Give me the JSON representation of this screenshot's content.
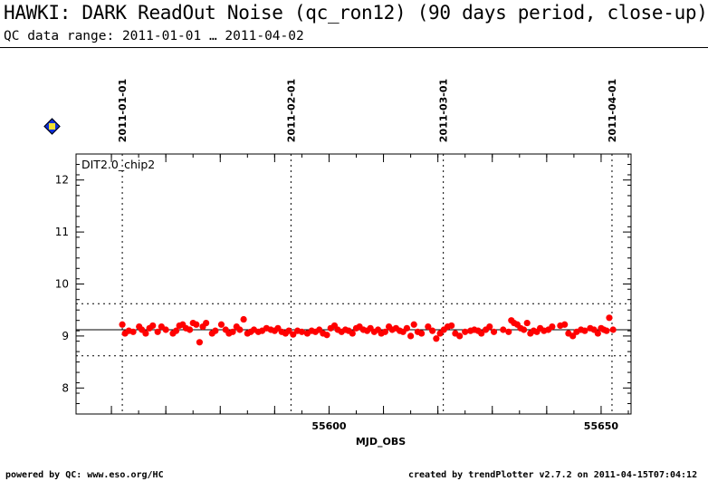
{
  "header": {
    "title": "HAWKI: DARK ReadOut Noise (qc_ron12) (90 days period, close-up)",
    "subtitle": "QC data range: 2011-01-01 … 2011-04-02"
  },
  "footer": {
    "left": "powered by QC: www.eso.org/HC",
    "right": "created by trendPlotter v2.7.2 on 2011-04-15T07:04:12"
  },
  "marker_icon": "diamond-6-icon",
  "colors": {
    "points": "#ff0000",
    "lines": "#000000"
  },
  "chart_data": {
    "type": "scatter",
    "panel_label": "DIT2.0_chip2",
    "xlabel": "MJD_OBS",
    "ylabel": "",
    "xlim": [
      55553.5,
      55655.5
    ],
    "ylim": [
      7.5,
      12.5
    ],
    "x_ticks": [
      55600,
      55650
    ],
    "x_tick_labels": [
      "55600",
      "55650"
    ],
    "y_ticks": [
      8,
      9,
      10,
      11,
      12
    ],
    "y_tick_labels": [
      "8",
      "9",
      "10",
      "11",
      "12"
    ],
    "date_markers": [
      {
        "label": "2011-01-01",
        "mjd": 55562
      },
      {
        "label": "2011-02-01",
        "mjd": 55593
      },
      {
        "label": "2011-03-01",
        "mjd": 55621
      },
      {
        "label": "2011-04-01",
        "mjd": 55652
      }
    ],
    "reference_lines": {
      "mean": 9.12,
      "upper": 9.62,
      "lower": 8.62
    },
    "grid": false,
    "series": [
      {
        "x": [
          55562.0,
          55562.5,
          55563.2,
          55564.0,
          55565.1,
          55565.6,
          55566.3,
          55567.0,
          55567.6,
          55568.5,
          55569.2,
          55570.0,
          55571.3,
          55571.9,
          55572.5,
          55573.1,
          55573.7,
          55574.4,
          55575.0,
          55575.6,
          55576.2,
          55576.8,
          55577.4,
          55578.5,
          55579.1,
          55580.2,
          55581.0,
          55581.6,
          55582.3,
          55583.0,
          55583.6,
          55584.3,
          55585.0,
          55585.6,
          55586.2,
          55587.0,
          55587.7,
          55588.5,
          55589.3,
          55590.0,
          55590.6,
          55591.3,
          55592.0,
          55592.6,
          55593.4,
          55594.2,
          55595.0,
          55596.0,
          55596.8,
          55597.5,
          55598.2,
          55598.9,
          55599.6,
          55600.3,
          55601.0,
          55601.6,
          55602.3,
          55603.0,
          55603.6,
          55604.3,
          55605.0,
          55605.6,
          55606.3,
          55607.0,
          55607.6,
          55608.3,
          55609.0,
          55609.6,
          55610.3,
          55611.0,
          55611.6,
          55612.3,
          55613.0,
          55613.6,
          55614.3,
          55615.0,
          55615.6,
          55616.3,
          55617.0,
          55618.2,
          55619.0,
          55619.7,
          55620.4,
          55621.1,
          55621.8,
          55622.5,
          55623.2,
          55624.0,
          55625.0,
          55626.0,
          55626.7,
          55627.4,
          55628.0,
          55628.8,
          55629.5,
          55630.3,
          55632.0,
          55633.0,
          55633.5,
          55634.0,
          55634.6,
          55635.2,
          55635.8,
          55636.4,
          55637.0,
          55637.6,
          55638.2,
          55638.8,
          55639.5,
          55640.3,
          55641.0,
          55642.5,
          55643.3,
          55644.0,
          55644.8,
          55645.5,
          55646.3,
          55647.0,
          55648.0,
          55648.7,
          55649.4,
          55650.0,
          55650.5,
          55651.0,
          55651.5,
          55652.2
        ],
        "y": [
          9.22,
          9.05,
          9.1,
          9.08,
          9.18,
          9.12,
          9.05,
          9.15,
          9.2,
          9.08,
          9.18,
          9.12,
          9.05,
          9.1,
          9.2,
          9.22,
          9.15,
          9.12,
          9.25,
          9.22,
          8.88,
          9.18,
          9.25,
          9.05,
          9.1,
          9.22,
          9.12,
          9.05,
          9.08,
          9.18,
          9.12,
          9.32,
          9.05,
          9.08,
          9.12,
          9.08,
          9.1,
          9.15,
          9.12,
          9.1,
          9.15,
          9.08,
          9.05,
          9.1,
          9.03,
          9.1,
          9.08,
          9.05,
          9.1,
          9.08,
          9.12,
          9.05,
          9.02,
          9.15,
          9.2,
          9.12,
          9.08,
          9.12,
          9.1,
          9.05,
          9.15,
          9.18,
          9.12,
          9.1,
          9.15,
          9.08,
          9.12,
          9.05,
          9.08,
          9.18,
          9.12,
          9.15,
          9.1,
          9.08,
          9.15,
          9.0,
          9.22,
          9.08,
          9.05,
          9.18,
          9.1,
          8.95,
          9.05,
          9.12,
          9.18,
          9.2,
          9.05,
          9.0,
          9.08,
          9.1,
          9.12,
          9.1,
          9.05,
          9.12,
          9.18,
          9.08,
          9.12,
          9.08,
          9.3,
          9.25,
          9.22,
          9.15,
          9.12,
          9.25,
          9.05,
          9.1,
          9.08,
          9.15,
          9.1,
          9.12,
          9.18,
          9.2,
          9.22,
          9.05,
          9.0,
          9.08,
          9.12,
          9.1,
          9.15,
          9.12,
          9.05,
          9.15,
          9.12,
          9.1,
          9.35,
          9.12
        ]
      }
    ]
  }
}
